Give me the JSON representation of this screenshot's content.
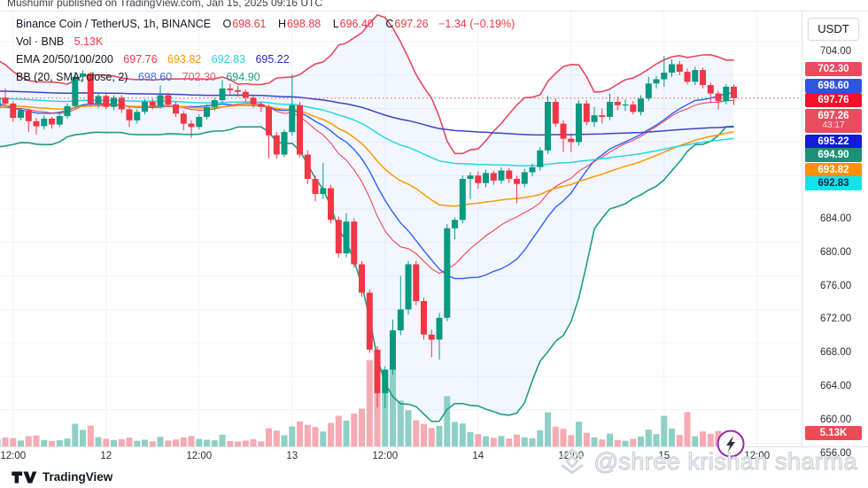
{
  "watermark_top": "Mushumir published on TradingView.com, Jan 15, 2025 09:16 UTC",
  "watermark_bottom_right": "@shree krishan sharma",
  "footer": {
    "brand": "TradingView"
  },
  "price_axis_currency": "USDT",
  "legend": {
    "symbol_line": "Binance Coin / TetherUS, 1h, BINANCE",
    "ohlc": {
      "o_label": "O",
      "o": "698.61",
      "h_label": "H",
      "h": "698.88",
      "l_label": "L",
      "l": "696.40",
      "c_label": "C",
      "c": "697.26",
      "change": "−1.34 (−0.19%)"
    },
    "volume_label": "Vol · BNB",
    "volume_value": "5.13K",
    "ema_label": "EMA 20/50/100/200",
    "ema_values": [
      {
        "text": "697.76",
        "color": "#f23645"
      },
      {
        "text": "693.82",
        "color": "#ff9800"
      },
      {
        "text": "692.83",
        "color": "#2bd1de"
      },
      {
        "text": "695.22",
        "color": "#2328cc"
      }
    ],
    "bb_label": "BB (20, SMA, close, 2)",
    "bb_values": [
      {
        "text": "698.60",
        "color": "#3d6be0"
      },
      {
        "text": "702.30",
        "color": "#e8566a"
      },
      {
        "text": "694.90",
        "color": "#1f9c82"
      }
    ]
  },
  "price_axis": {
    "ticks": [
      "704.00",
      "684.00",
      "680.00",
      "676.00",
      "672.00",
      "668.00",
      "664.00",
      "660.00",
      "656.00"
    ],
    "badges": [
      {
        "text": "702.30",
        "bg": "#ea4c5f",
        "fg": "#ffffff"
      },
      {
        "text": "698.60",
        "bg": "#2f55e0",
        "fg": "#ffffff"
      },
      {
        "text": "697.76",
        "bg": "#f50f28",
        "fg": "#ffffff"
      },
      {
        "text": "697.26",
        "sub": "43:17",
        "bg": "#ea4c5f",
        "fg": "#ffffff"
      },
      {
        "text": "695.22",
        "bg": "#111bd8",
        "fg": "#ffffff"
      },
      {
        "text": "694.90",
        "bg": "#1e8f78",
        "fg": "#ffffff"
      },
      {
        "text": "693.82",
        "bg": "#ff9102",
        "fg": "#ffffff"
      },
      {
        "text": "692.83",
        "bg": "#12e3ea",
        "fg": "#0c2340"
      }
    ],
    "volume_badge": {
      "text": "5.13K",
      "bg": "#ef4955",
      "fg": "#ffffff"
    }
  },
  "time_axis": {
    "labels": [
      {
        "text": "12:00",
        "i": 2
      },
      {
        "text": "12",
        "i": 14
      },
      {
        "text": "12:00",
        "i": 26
      },
      {
        "text": "13",
        "i": 38
      },
      {
        "text": "12:00",
        "i": 50
      },
      {
        "text": "14",
        "i": 62
      },
      {
        "text": "12:00",
        "i": 74
      },
      {
        "text": "15",
        "i": 86
      },
      {
        "text": "12:00",
        "i": 98
      }
    ]
  },
  "chart_data": {
    "type": "candlestick",
    "title": "Binance Coin / TetherUS, 1h, BINANCE",
    "symbol": "BNB/USDT",
    "exchange": "BINANCE",
    "interval": "1h",
    "start_time": "2025-01-11 10:00 UTC",
    "last_price": 697.26,
    "change": -1.34,
    "change_pct": -0.19,
    "countdown": "43:17",
    "ylim": [
      656,
      704
    ],
    "price_grid": [
      704,
      700,
      696,
      692,
      688,
      684,
      680,
      676,
      672,
      668,
      664,
      660,
      656
    ],
    "volume_unit": "K",
    "last_volume": 5.13,
    "candles_format": [
      "open",
      "high",
      "low",
      "close",
      "volume_K"
    ],
    "candles": [
      [
        696.2,
        697.5,
        695.8,
        697.3,
        2.8
      ],
      [
        697.3,
        698.4,
        696.4,
        696.6,
        3.4
      ],
      [
        696.6,
        696.9,
        694.4,
        694.9,
        3.1
      ],
      [
        694.9,
        696.1,
        694.6,
        695.8,
        2.2
      ],
      [
        695.8,
        696.0,
        693.2,
        694.5,
        3.8
      ],
      [
        694.5,
        694.9,
        692.9,
        693.9,
        4.1
      ],
      [
        693.9,
        695.2,
        693.5,
        694.8,
        2.4
      ],
      [
        694.8,
        695.0,
        693.6,
        694.1,
        2.0
      ],
      [
        694.1,
        695.4,
        693.8,
        695.1,
        2.3
      ],
      [
        695.1,
        696.6,
        694.8,
        696.3,
        3.0
      ],
      [
        696.3,
        700.4,
        696.0,
        699.8,
        8.5
      ],
      [
        699.8,
        700.6,
        699.2,
        700.2,
        6.2
      ],
      [
        700.2,
        700.4,
        696.3,
        696.6,
        7.8
      ],
      [
        696.6,
        697.9,
        696.1,
        697.5,
        3.5
      ],
      [
        697.5,
        697.8,
        695.9,
        696.2,
        2.9
      ],
      [
        696.2,
        697.6,
        695.8,
        697.3,
        2.4
      ],
      [
        697.3,
        697.6,
        695.5,
        695.9,
        2.7
      ],
      [
        695.9,
        696.2,
        693.8,
        694.6,
        3.3
      ],
      [
        694.6,
        695.9,
        694.2,
        695.6,
        2.1
      ],
      [
        695.6,
        697.1,
        695.3,
        696.8,
        2.5
      ],
      [
        696.8,
        697.2,
        695.9,
        696.3,
        1.9
      ],
      [
        696.3,
        698.8,
        696.0,
        697.6,
        3.6
      ],
      [
        697.6,
        697.9,
        696.2,
        696.5,
        2.2
      ],
      [
        696.5,
        696.8,
        695.0,
        695.4,
        2.6
      ],
      [
        695.4,
        695.7,
        693.4,
        694.2,
        3.4
      ],
      [
        694.2,
        694.6,
        692.5,
        693.8,
        3.9
      ],
      [
        693.8,
        695.3,
        693.5,
        695.0,
        2.8
      ],
      [
        695.0,
        696.5,
        694.7,
        696.2,
        2.5
      ],
      [
        696.2,
        697.3,
        695.8,
        697.0,
        2.3
      ],
      [
        697.0,
        699.4,
        696.7,
        698.4,
        4.4
      ],
      [
        698.4,
        699.0,
        697.6,
        698.2,
        2.0
      ],
      [
        698.2,
        698.7,
        697.4,
        698.0,
        1.8
      ],
      [
        698.0,
        698.3,
        696.8,
        697.3,
        2.2
      ],
      [
        697.3,
        697.6,
        696.1,
        696.5,
        2.7
      ],
      [
        696.5,
        696.8,
        695.6,
        696.2,
        1.9
      ],
      [
        696.2,
        696.5,
        690.1,
        692.8,
        6.8
      ],
      [
        692.8,
        693.2,
        690.0,
        690.5,
        5.9
      ],
      [
        690.5,
        693.5,
        690.2,
        693.2,
        4.2
      ],
      [
        693.2,
        700.1,
        692.8,
        696.4,
        7.5
      ],
      [
        696.4,
        696.8,
        690.2,
        690.5,
        9.4
      ],
      [
        690.5,
        691.0,
        687.0,
        687.6,
        8.1
      ],
      [
        687.6,
        688.0,
        684.9,
        685.8,
        7.3
      ],
      [
        685.8,
        689.5,
        685.2,
        686.5,
        5.6
      ],
      [
        686.5,
        686.9,
        682.3,
        682.7,
        8.8
      ],
      [
        682.7,
        683.1,
        678.2,
        678.7,
        11.5
      ],
      [
        678.7,
        683.5,
        678.2,
        682.5,
        9.7
      ],
      [
        682.5,
        682.9,
        677.0,
        677.4,
        12.4
      ],
      [
        677.4,
        677.8,
        673.5,
        674.0,
        14.2
      ],
      [
        674.0,
        674.4,
        666.8,
        667.2,
        32.5
      ],
      [
        667.2,
        667.6,
        660.3,
        662.0,
        20.6
      ],
      [
        662.0,
        665.2,
        660.2,
        664.8,
        24.3
      ],
      [
        664.8,
        670.8,
        664.2,
        669.5,
        40.8
      ],
      [
        669.5,
        676.0,
        668.9,
        672.0,
        17.2
      ],
      [
        672.0,
        677.8,
        671.4,
        677.4,
        13.6
      ],
      [
        677.4,
        677.8,
        672.5,
        673.0,
        9.8
      ],
      [
        673.0,
        673.4,
        668.4,
        669.0,
        8.4
      ],
      [
        669.0,
        669.6,
        666.3,
        668.4,
        6.9
      ],
      [
        668.4,
        671.6,
        666.0,
        671.0,
        7.7
      ],
      [
        671.0,
        682.2,
        670.6,
        681.7,
        18.9
      ],
      [
        681.7,
        683.0,
        680.4,
        682.7,
        9.2
      ],
      [
        682.7,
        688.0,
        682.3,
        687.6,
        8.6
      ],
      [
        687.6,
        688.4,
        685.2,
        688.0,
        5.4
      ],
      [
        688.0,
        688.5,
        686.4,
        687.1,
        4.6
      ],
      [
        687.1,
        688.7,
        686.6,
        688.3,
        3.8
      ],
      [
        688.3,
        688.6,
        686.9,
        687.4,
        3.2
      ],
      [
        687.4,
        689.0,
        687.0,
        688.6,
        3.9
      ],
      [
        688.6,
        688.9,
        687.1,
        687.6,
        2.9
      ],
      [
        687.6,
        688.0,
        684.7,
        687.0,
        4.4
      ],
      [
        687.0,
        688.8,
        686.6,
        688.4,
        3.4
      ],
      [
        688.4,
        689.4,
        687.9,
        689.0,
        3.1
      ],
      [
        689.0,
        691.4,
        688.6,
        691.0,
        6.1
      ],
      [
        691.0,
        697.5,
        690.6,
        696.8,
        12.8
      ],
      [
        696.8,
        697.2,
        693.8,
        694.2,
        7.4
      ],
      [
        694.2,
        694.6,
        690.8,
        692.4,
        6.6
      ],
      [
        692.4,
        692.8,
        690.8,
        692.0,
        4.2
      ],
      [
        692.0,
        697.0,
        691.6,
        696.6,
        9.3
      ],
      [
        696.6,
        697.0,
        694.0,
        694.4,
        5.1
      ],
      [
        694.4,
        696.2,
        693.8,
        695.2,
        3.4
      ],
      [
        695.2,
        696.0,
        694.2,
        695.0,
        2.6
      ],
      [
        695.0,
        697.8,
        694.6,
        696.8,
        4.8
      ],
      [
        696.8,
        697.4,
        695.8,
        696.4,
        2.4
      ],
      [
        696.4,
        697.1,
        695.7,
        696.5,
        2.1
      ],
      [
        696.5,
        696.9,
        695.3,
        695.6,
        2.8
      ],
      [
        695.6,
        697.6,
        695.2,
        697.2,
        3.7
      ],
      [
        697.2,
        699.8,
        696.9,
        699.0,
        6.3
      ],
      [
        699.0,
        699.9,
        698.4,
        699.5,
        4.6
      ],
      [
        699.5,
        702.3,
        698.6,
        700.3,
        11.5
      ],
      [
        700.3,
        701.9,
        699.8,
        701.3,
        6.7
      ],
      [
        701.3,
        701.7,
        700.0,
        700.4,
        4.3
      ],
      [
        700.4,
        700.8,
        698.9,
        699.2,
        12.9
      ],
      [
        699.2,
        701.0,
        698.8,
        700.6,
        3.8
      ],
      [
        700.6,
        700.9,
        698.4,
        698.8,
        5.6
      ],
      [
        698.8,
        699.1,
        696.8,
        697.8,
        4.7
      ],
      [
        697.8,
        698.1,
        695.9,
        696.9,
        5.8
      ],
      [
        696.9,
        698.9,
        696.5,
        698.61,
        4.1
      ],
      [
        698.61,
        698.88,
        696.4,
        697.26,
        5.13
      ]
    ],
    "indicators": {
      "ema": [
        {
          "period": 20,
          "seed": 696.0,
          "color": "#f23645",
          "width": 1,
          "last": 697.76
        },
        {
          "period": 50,
          "seed": 696.3,
          "color": "#ff9800",
          "width": 1.5,
          "last": 693.82
        },
        {
          "period": 100,
          "seed": 697.2,
          "color": "#25d8e0",
          "width": 1.5,
          "last": 692.83
        },
        {
          "period": 200,
          "seed": 698.1,
          "color": "#3b44c4",
          "width": 1.5,
          "last": 695.22
        }
      ],
      "bb": {
        "period": 20,
        "stdev": 2,
        "seed_history": [
          700.6,
          701.2,
          700.2,
          698.8,
          697.2,
          695.6,
          694.0,
          692.8,
          692.0,
          692.6,
          693.6,
          694.9,
          696.1,
          697.3,
          698.1,
          698.5,
          697.7,
          696.9,
          696.4
        ],
        "basis_color": "#2962ff",
        "upper_color": "#e9485c",
        "lower_color": "#1e9d80",
        "fill": "rgba(41,98,255,0.06)",
        "last": {
          "basis": 698.6,
          "upper": 702.3,
          "lower": 694.9
        }
      }
    },
    "colors": {
      "up": "#089981",
      "down": "#f23645",
      "vol_up": "#8fd0c6",
      "vol_down": "#f6aab2",
      "grid": "#f0f3fa",
      "last_price_line": "#ef4c5c"
    }
  }
}
